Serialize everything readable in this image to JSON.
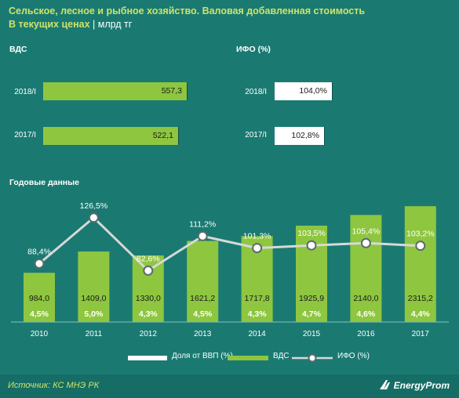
{
  "header": {
    "title": "Сельское, лесное и рыбное хозяйство. Валовая добавленная стоимость",
    "subtitle": "В текущих ценах",
    "unit_sep": " | ",
    "unit": "млрд тг"
  },
  "quarterly": {
    "vds_label": "ВДС",
    "ifo_label": "ИФО (%)",
    "periods": [
      "2018/I",
      "2017/I"
    ],
    "vds_values": [
      "557,3",
      "522,1"
    ],
    "ifo_values": [
      "104,0%",
      "102,8%"
    ]
  },
  "annual_label": "Годовые данные",
  "legend": {
    "share": "Доля от ВВП (%)",
    "vds": "ВДС",
    "ifo": "ИФО (%)"
  },
  "colors": {
    "background": "#1a7a72",
    "bar": "#8ec63f",
    "line": "#d8d8d8",
    "title": "#cde36a"
  },
  "footer": {
    "source": "Источник: КС МНЭ РК",
    "logo": "EnergyProm"
  },
  "chart_data": [
    {
      "type": "bar",
      "title": "ВДС",
      "categories": [
        "2018/I",
        "2017/I"
      ],
      "values": [
        557.3,
        522.1
      ]
    },
    {
      "type": "bar",
      "title": "ИФО (%)",
      "categories": [
        "2018/I",
        "2017/I"
      ],
      "values": [
        104.0,
        102.8
      ]
    },
    {
      "type": "bar",
      "title": "Годовые данные",
      "categories": [
        "2010",
        "2011",
        "2012",
        "2013",
        "2014",
        "2015",
        "2016",
        "2017"
      ],
      "series": [
        {
          "name": "ВДС",
          "values": [
            984.0,
            1409.0,
            1330.0,
            1621.2,
            1717.8,
            1925.9,
            2140.0,
            2315.2
          ],
          "labels": [
            "984,0",
            "1409,0",
            "1330,0",
            "1621,2",
            "1717,8",
            "1925,9",
            "2140,0",
            "2315,2"
          ]
        },
        {
          "name": "Доля от ВВП (%)",
          "values": [
            4.5,
            5.0,
            4.3,
            4.5,
            4.3,
            4.7,
            4.6,
            4.4
          ],
          "labels": [
            "4,5%",
            "5,0%",
            "4,3%",
            "4,5%",
            "4,3%",
            "4,7%",
            "4,6%",
            "4,4%"
          ]
        },
        {
          "name": "ИФО (%)",
          "type": "line",
          "values": [
            88.4,
            126.5,
            82.6,
            111.2,
            101.3,
            103.5,
            105.4,
            103.2
          ],
          "labels": [
            "88,4%",
            "126,5%",
            "82,6%",
            "111,2%",
            "101,3%",
            "103,5%",
            "105,4%",
            "103,2%"
          ]
        }
      ],
      "ylim": [
        0,
        2600
      ],
      "y2lim": [
        40,
        140
      ],
      "grid": false,
      "legend": "bottom"
    }
  ]
}
